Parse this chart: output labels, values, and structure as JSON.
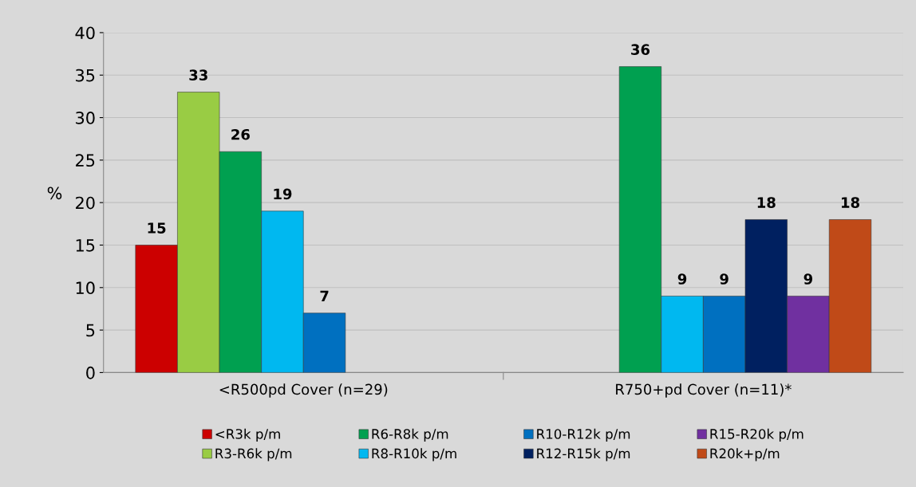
{
  "chart_data": {
    "type": "bar",
    "ylabel": "%",
    "categories": [
      "<R500pd Cover (n=29)",
      "R750+pd Cover (n=11)*"
    ],
    "series": [
      {
        "name": "<R3k p/m",
        "color": "#cc0000",
        "values": [
          15,
          null
        ]
      },
      {
        "name": "R3-R6k p/m",
        "color": "#99cc44",
        "values": [
          33,
          null
        ]
      },
      {
        "name": "R6-R8k p/m",
        "color": "#00a050",
        "values": [
          26,
          36
        ]
      },
      {
        "name": "R8-R10k p/m",
        "color": "#00b8f0",
        "values": [
          19,
          9
        ]
      },
      {
        "name": "R10-R12k p/m",
        "color": "#0070c0",
        "values": [
          7,
          9
        ]
      },
      {
        "name": "R12-R15k p/m",
        "color": "#002060",
        "values": [
          null,
          18
        ]
      },
      {
        "name": "R15-R20k p/m",
        "color": "#7030a0",
        "values": [
          null,
          9
        ]
      },
      {
        "name": "R20k+p/m",
        "color": "#c04a18",
        "values": [
          null,
          18
        ]
      }
    ],
    "ylim": [
      0,
      40
    ],
    "yticks": [
      0,
      5,
      10,
      15,
      20,
      25,
      30,
      35,
      40
    ],
    "grid": "y",
    "legend": "bottom",
    "data_labels": true
  }
}
